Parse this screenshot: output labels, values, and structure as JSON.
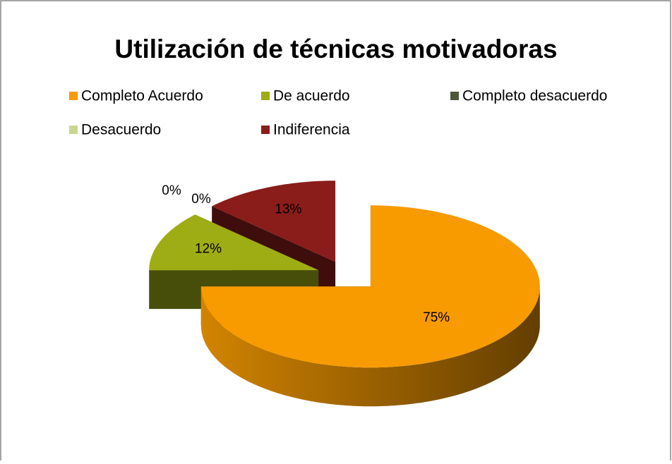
{
  "chart_data": {
    "type": "pie",
    "title": "Utilización de técnicas motivadoras",
    "categories": [
      "Completo Acuerdo",
      "De acuerdo",
      "Completo desacuerdo",
      "Desacuerdo",
      "Indiferencia"
    ],
    "values": [
      75,
      12,
      0,
      0,
      13
    ],
    "value_labels": [
      "75%",
      "12%",
      "0%",
      "0%",
      "13%"
    ],
    "colors": [
      "#F79B00",
      "#9EAD14",
      "#4E5838",
      "#C8D88E",
      "#8A1C1A"
    ],
    "legend": "top"
  }
}
